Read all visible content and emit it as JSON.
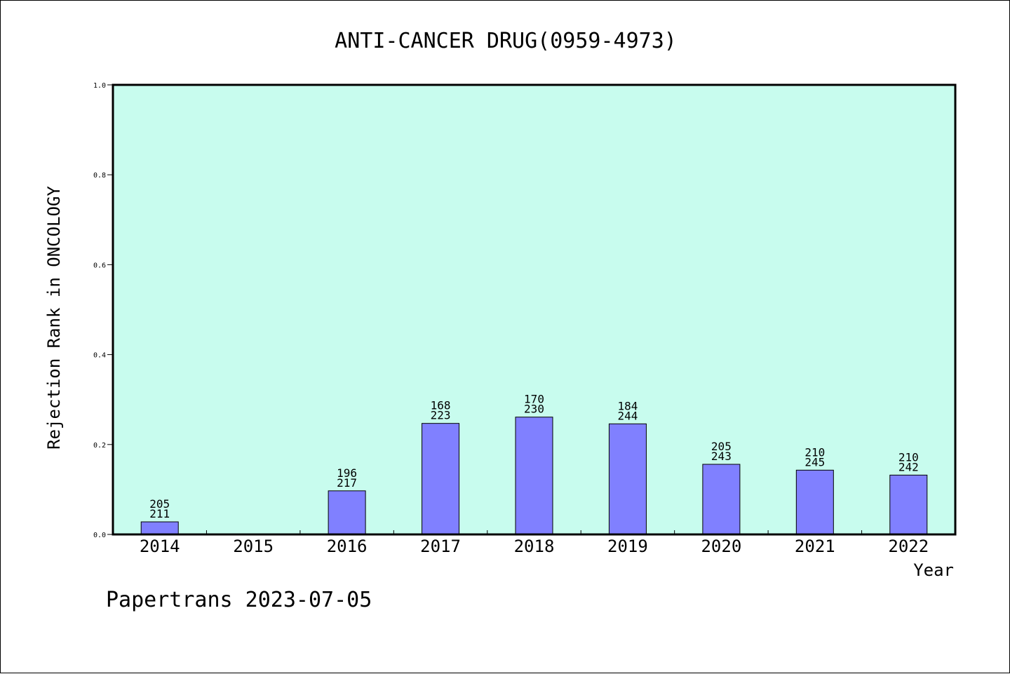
{
  "chart_data": {
    "type": "bar",
    "title": "ANTI-CANCER DRUG(0959-4973)",
    "xlabel": "Year",
    "ylabel": "Rejection Rank in ONCOLOGY",
    "ylim": [
      0,
      1.0
    ],
    "yticks": [
      "0.0",
      "0.2",
      "0.4",
      "0.6",
      "0.8",
      "1.0"
    ],
    "grid": false,
    "categories": [
      "2014",
      "2015",
      "2016",
      "2017",
      "2018",
      "2019",
      "2020",
      "2021",
      "2022"
    ],
    "values": [
      0.028,
      null,
      0.097,
      0.247,
      0.261,
      0.246,
      0.156,
      0.143,
      0.132
    ],
    "labels_top": [
      "205",
      "",
      "196",
      "168",
      "170",
      "184",
      "205",
      "210",
      "210"
    ],
    "labels_bottom": [
      "211",
      "",
      "217",
      "223",
      "230",
      "244",
      "243",
      "245",
      "242"
    ]
  },
  "footer": {
    "text": "Papertrans 2023-07-05"
  },
  "colors": {
    "plot_background": "#c8fcee",
    "bar_fill": "#8080ff",
    "bar_stroke": "#000000",
    "frame": "#000000"
  }
}
